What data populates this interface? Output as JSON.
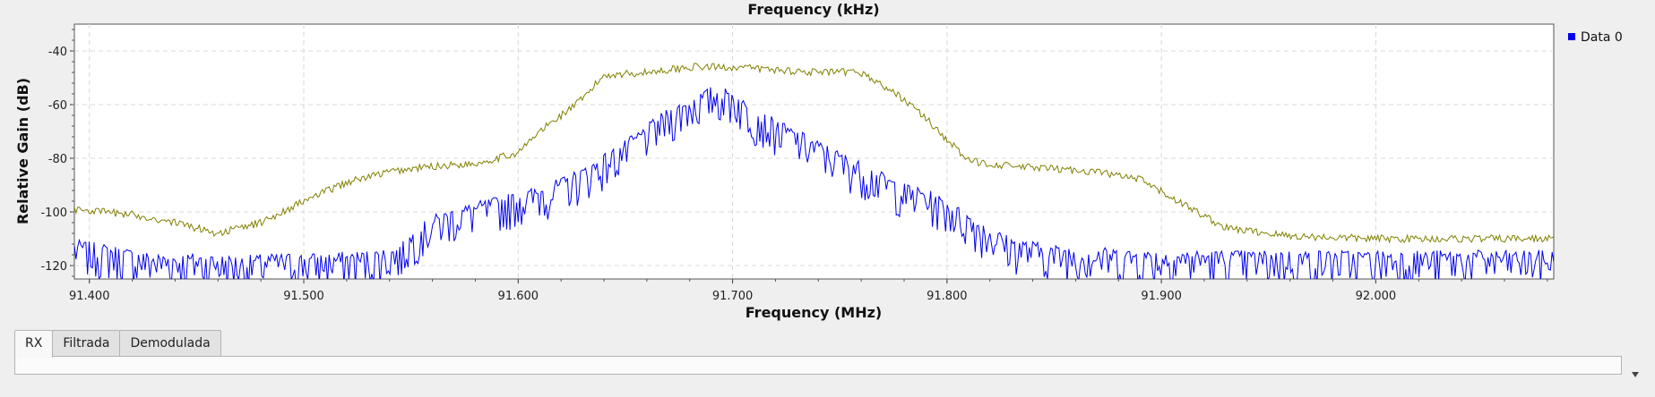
{
  "chart_data": {
    "type": "line",
    "title": "Frequency (kHz)",
    "xlabel": "Frequency (MHz)",
    "ylabel": "Relative Gain (dB)",
    "xlim": [
      91.393,
      92.083
    ],
    "ylim": [
      -125,
      -30
    ],
    "x_ticks": [
      "91.400",
      "91.500",
      "91.600",
      "91.700",
      "91.800",
      "91.900",
      "92.000"
    ],
    "x_tick_values": [
      91.4,
      91.5,
      91.6,
      91.7,
      91.8,
      91.9,
      92.0
    ],
    "y_ticks": [
      "-40",
      "-60",
      "-80",
      "-100",
      "-120"
    ],
    "y_tick_values": [
      -40,
      -60,
      -80,
      -100,
      -120
    ],
    "grid": true,
    "legend_position": "top-right",
    "series": [
      {
        "name": "Data 0",
        "color": "#0000ee",
        "points": [
          [
            91.393,
            -113
          ],
          [
            91.41,
            -115
          ],
          [
            91.43,
            -118
          ],
          [
            91.45,
            -118
          ],
          [
            91.47,
            -119
          ],
          [
            91.49,
            -118
          ],
          [
            91.51,
            -118
          ],
          [
            91.53,
            -117
          ],
          [
            91.545,
            -115
          ],
          [
            91.55,
            -110
          ],
          [
            91.56,
            -104
          ],
          [
            91.57,
            -101
          ],
          [
            91.58,
            -99
          ],
          [
            91.59,
            -97
          ],
          [
            91.6,
            -95
          ],
          [
            91.61,
            -93
          ],
          [
            91.62,
            -90
          ],
          [
            91.63,
            -86
          ],
          [
            91.64,
            -81
          ],
          [
            91.65,
            -76
          ],
          [
            91.66,
            -70
          ],
          [
            91.67,
            -64
          ],
          [
            91.68,
            -60
          ],
          [
            91.69,
            -56
          ],
          [
            91.7,
            -57
          ],
          [
            91.71,
            -64
          ],
          [
            91.72,
            -68
          ],
          [
            91.73,
            -72
          ],
          [
            91.74,
            -76
          ],
          [
            91.75,
            -80
          ],
          [
            91.76,
            -84
          ],
          [
            91.77,
            -88
          ],
          [
            91.78,
            -92
          ],
          [
            91.79,
            -94
          ],
          [
            91.8,
            -98
          ],
          [
            91.81,
            -103
          ],
          [
            91.82,
            -108
          ],
          [
            91.83,
            -112
          ],
          [
            91.85,
            -115
          ],
          [
            91.9,
            -117
          ],
          [
            91.95,
            -117
          ],
          [
            92.0,
            -117
          ],
          [
            92.05,
            -117
          ],
          [
            92.083,
            -117
          ]
        ],
        "jitter": 7
      },
      {
        "name": "",
        "color": "#808000",
        "points": [
          [
            91.393,
            -99
          ],
          [
            91.42,
            -101
          ],
          [
            91.44,
            -104
          ],
          [
            91.46,
            -108
          ],
          [
            91.48,
            -104
          ],
          [
            91.5,
            -96
          ],
          [
            91.52,
            -89
          ],
          [
            91.54,
            -85
          ],
          [
            91.56,
            -83
          ],
          [
            91.58,
            -82
          ],
          [
            91.6,
            -78
          ],
          [
            91.61,
            -70
          ],
          [
            91.62,
            -64
          ],
          [
            91.63,
            -58
          ],
          [
            91.64,
            -49
          ],
          [
            91.66,
            -48
          ],
          [
            91.68,
            -46
          ],
          [
            91.7,
            -46
          ],
          [
            91.72,
            -47
          ],
          [
            91.74,
            -48
          ],
          [
            91.76,
            -48
          ],
          [
            91.77,
            -53
          ],
          [
            91.78,
            -58
          ],
          [
            91.79,
            -65
          ],
          [
            91.8,
            -73
          ],
          [
            91.81,
            -81
          ],
          [
            91.83,
            -83
          ],
          [
            91.85,
            -84
          ],
          [
            91.87,
            -85
          ],
          [
            91.89,
            -88
          ],
          [
            91.91,
            -97
          ],
          [
            91.93,
            -106
          ],
          [
            91.96,
            -109
          ],
          [
            92.0,
            -110
          ],
          [
            92.04,
            -110
          ],
          [
            92.083,
            -110
          ]
        ],
        "jitter": 1.4
      }
    ]
  }
}
